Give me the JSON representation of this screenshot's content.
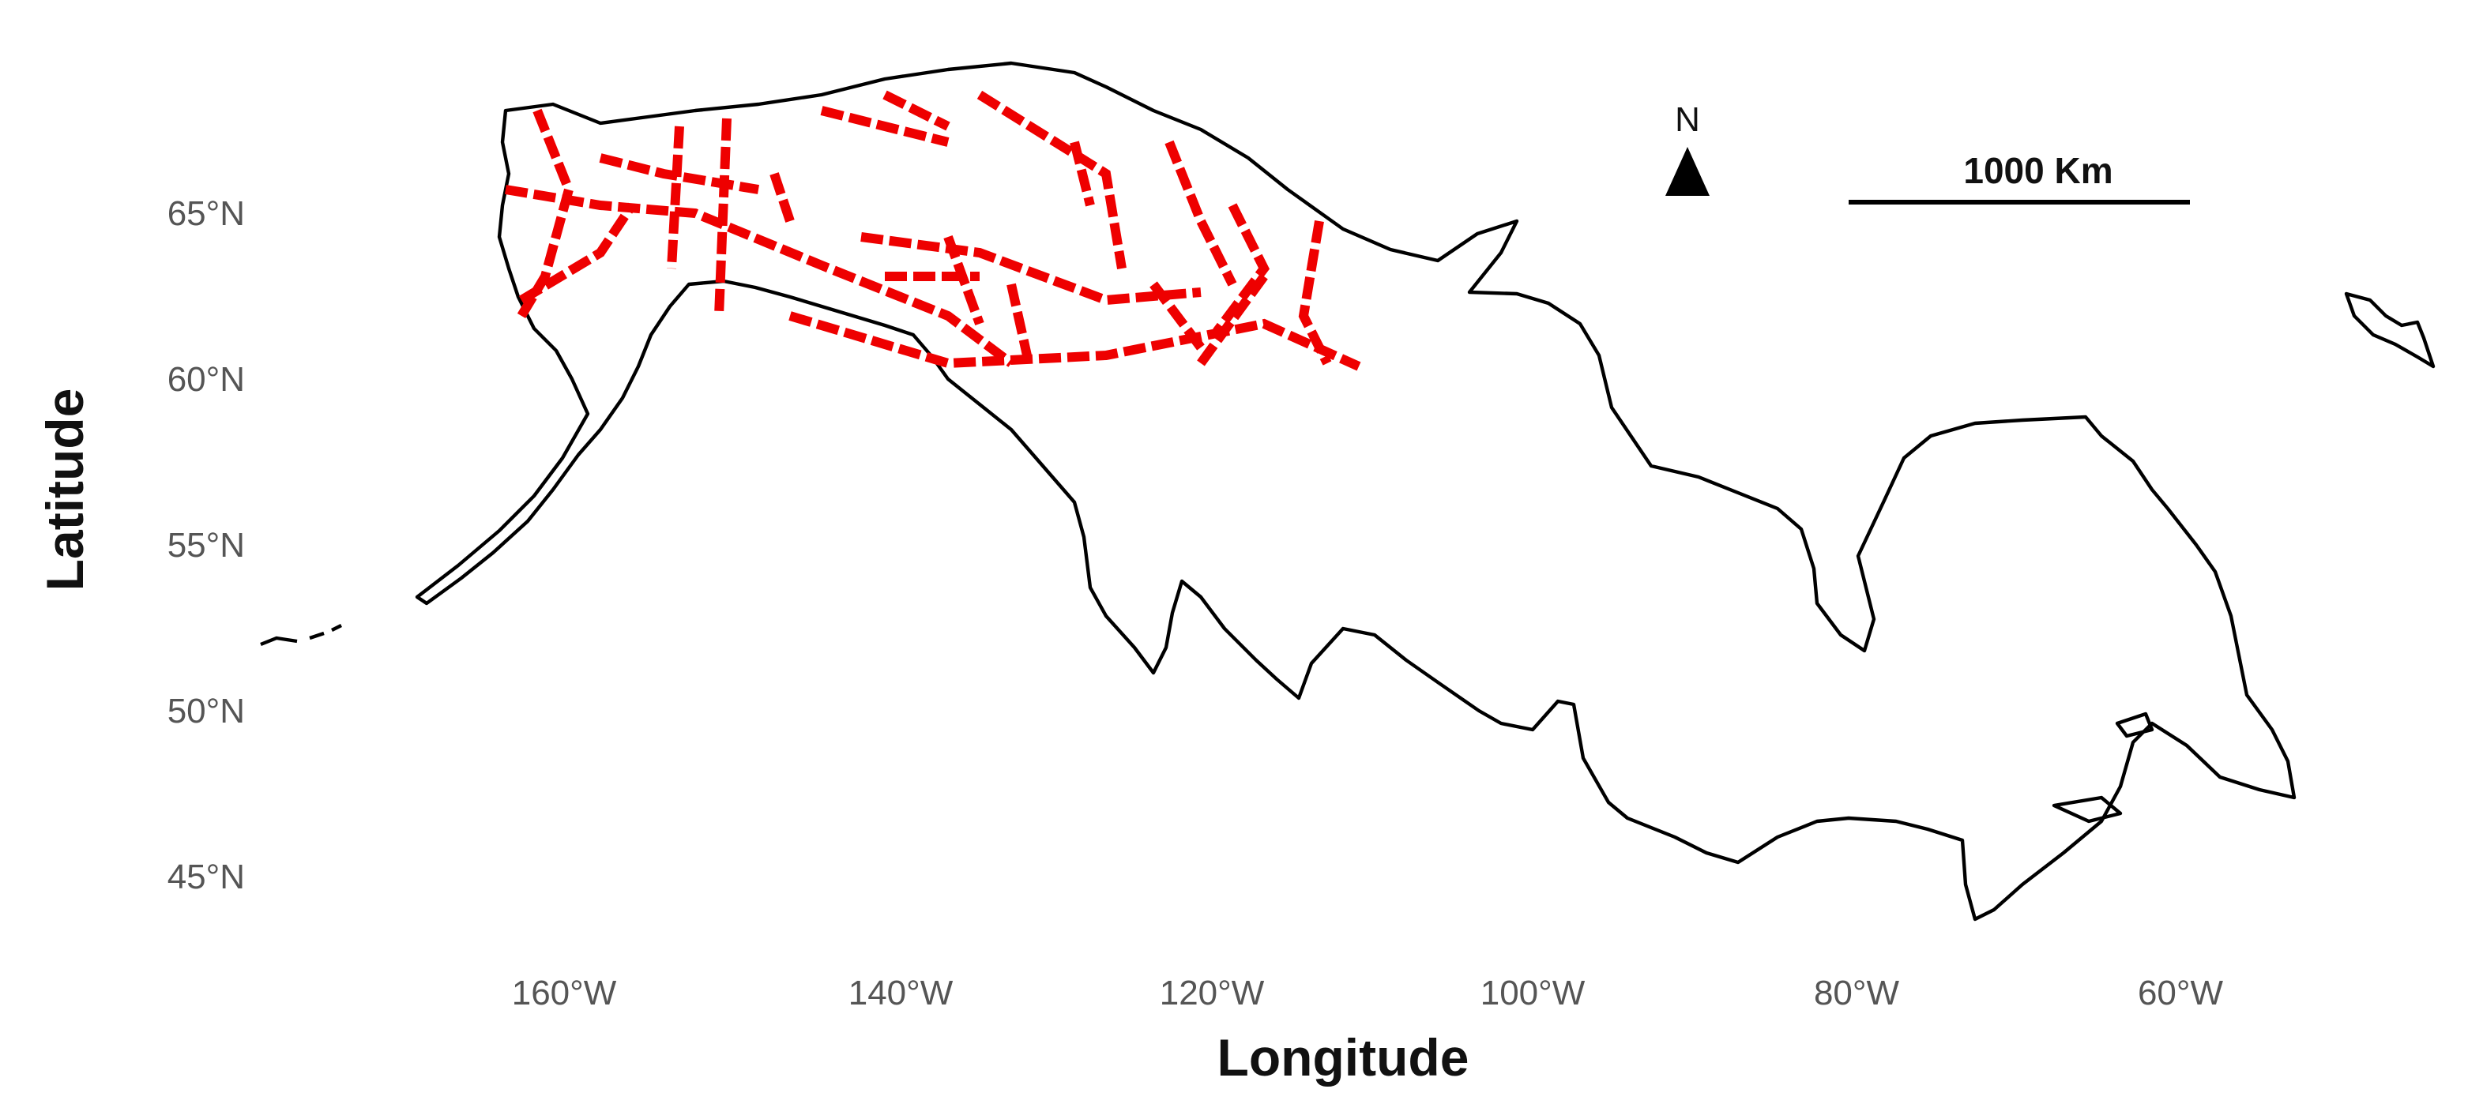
{
  "map": {
    "y_axis": {
      "title": "Latitude",
      "ticks": [
        "65°N",
        "60°N",
        "55°N",
        "50°N",
        "45°N"
      ]
    },
    "x_axis": {
      "title": "Longitude",
      "ticks": [
        "160°W",
        "140°W",
        "120°W",
        "100°W",
        "80°W",
        "60°W"
      ]
    },
    "north_arrow": "N",
    "scale_bar": "1000 Km"
  }
}
